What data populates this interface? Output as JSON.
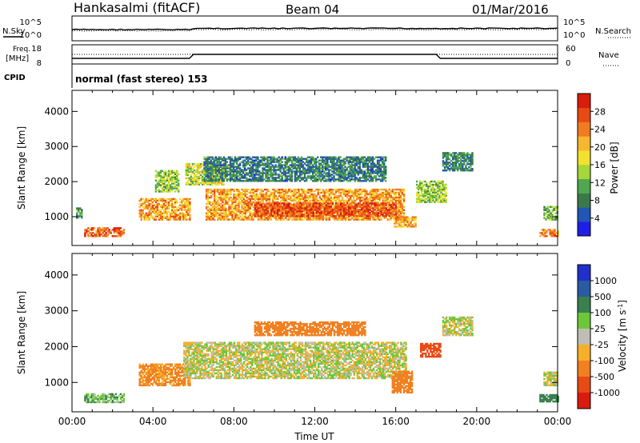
{
  "header": {
    "station": "Hankasalmi (fitACF)",
    "beam": "Beam 04",
    "date": "01/Mar/2016"
  },
  "status_panels": {
    "nsky_label": "N.Sky",
    "nsearch_label": "N.Search",
    "noise_ticks": [
      "10^5",
      "10^0"
    ],
    "freq_label_line1": "Freq.",
    "freq_label_line2": "[MHz]",
    "freq_ticks": [
      "18",
      "8"
    ],
    "nave_label": "Nave",
    "nave_ticks": [
      "60",
      "0"
    ],
    "cpid_label": "CPID",
    "cpid_text": "normal (fast stereo) 153"
  },
  "chart_data": [
    {
      "type": "heatmap",
      "name": "power",
      "ylabel": "Slant Range [km]",
      "xlabel": "",
      "xlim": [
        "00:00",
        "24:00"
      ],
      "ylim": [
        180,
        4600
      ],
      "yticks": [
        1000,
        2000,
        3000,
        4000
      ],
      "colorbar": {
        "label": "Power [dB]",
        "ticks": [
          4,
          8,
          12,
          16,
          20,
          24,
          28
        ],
        "range": [
          0,
          32
        ],
        "colors": [
          "#1f1fe6",
          "#2156b4",
          "#3a7a4a",
          "#4fa84f",
          "#a5d63a",
          "#f2e12e",
          "#f5b630",
          "#f07c22",
          "#e84a14",
          "#d91c0c"
        ]
      },
      "echo_regions": [
        {
          "t0": 0.2,
          "t1": 0.5,
          "r0": 950,
          "r1": 1250,
          "value": 10
        },
        {
          "t0": 0.6,
          "t1": 2.6,
          "r0": 430,
          "r1": 700,
          "value": 26
        },
        {
          "t0": 3.3,
          "t1": 5.8,
          "r0": 900,
          "r1": 1500,
          "value": 22
        },
        {
          "t0": 4.1,
          "t1": 5.3,
          "r0": 1700,
          "r1": 2300,
          "value": 14
        },
        {
          "t0": 5.6,
          "t1": 7.5,
          "r0": 1900,
          "r1": 2500,
          "value": 16
        },
        {
          "t0": 6.6,
          "t1": 16.4,
          "r0": 900,
          "r1": 1800,
          "value": 22
        },
        {
          "t0": 9.0,
          "t1": 16.0,
          "r0": 1000,
          "r1": 1400,
          "value": 27
        },
        {
          "t0": 6.5,
          "t1": 15.5,
          "r0": 2000,
          "r1": 2700,
          "value": 8
        },
        {
          "t0": 15.9,
          "t1": 17.0,
          "r0": 700,
          "r1": 1000,
          "value": 22
        },
        {
          "t0": 17.0,
          "t1": 18.5,
          "r0": 1400,
          "r1": 2000,
          "value": 14
        },
        {
          "t0": 18.3,
          "t1": 19.8,
          "r0": 2300,
          "r1": 2800,
          "value": 8
        },
        {
          "t0": 23.1,
          "t1": 24.0,
          "r0": 430,
          "r1": 650,
          "value": 24
        },
        {
          "t0": 23.3,
          "t1": 24.0,
          "r0": 900,
          "r1": 1300,
          "value": 12
        }
      ]
    },
    {
      "type": "heatmap",
      "name": "velocity",
      "ylabel": "Slant Range [km]",
      "xlabel": "Time UT",
      "xlim": [
        "00:00",
        "24:00"
      ],
      "xticks": [
        "00:00",
        "04:00",
        "08:00",
        "12:00",
        "16:00",
        "20:00",
        "00:00"
      ],
      "ylim": [
        180,
        4600
      ],
      "yticks": [
        1000,
        2000,
        3000,
        4000
      ],
      "colorbar": {
        "label": "Velocity [m s^-1]",
        "ticks": [
          1000,
          500,
          100,
          25,
          -25,
          -100,
          -500,
          -1000
        ],
        "colors": [
          "#2030c8",
          "#2a5aa0",
          "#3a8050",
          "#6cc83a",
          "#bebeb4",
          "#f5b02a",
          "#f08020",
          "#e84a16",
          "#d81c10"
        ]
      },
      "echo_regions": [
        {
          "t0": 0.6,
          "t1": 2.6,
          "r0": 430,
          "r1": 700,
          "value": 80
        },
        {
          "t0": 3.3,
          "t1": 5.8,
          "r0": 900,
          "r1": 1500,
          "value": -150
        },
        {
          "t0": 5.5,
          "t1": 16.5,
          "r0": 1100,
          "r1": 2100,
          "value": 0
        },
        {
          "t0": 9.0,
          "t1": 14.5,
          "r0": 2300,
          "r1": 2700,
          "value": -300
        },
        {
          "t0": 15.8,
          "t1": 16.8,
          "r0": 700,
          "r1": 1300,
          "value": -400
        },
        {
          "t0": 17.2,
          "t1": 18.2,
          "r0": 1700,
          "r1": 2100,
          "value": -600
        },
        {
          "t0": 18.3,
          "t1": 19.8,
          "r0": 2300,
          "r1": 2800,
          "value": 0
        },
        {
          "t0": 23.1,
          "t1": 24.0,
          "r0": 450,
          "r1": 650,
          "value": 300
        },
        {
          "t0": 23.3,
          "t1": 24.0,
          "r0": 900,
          "r1": 1300,
          "value": 0
        }
      ]
    }
  ]
}
